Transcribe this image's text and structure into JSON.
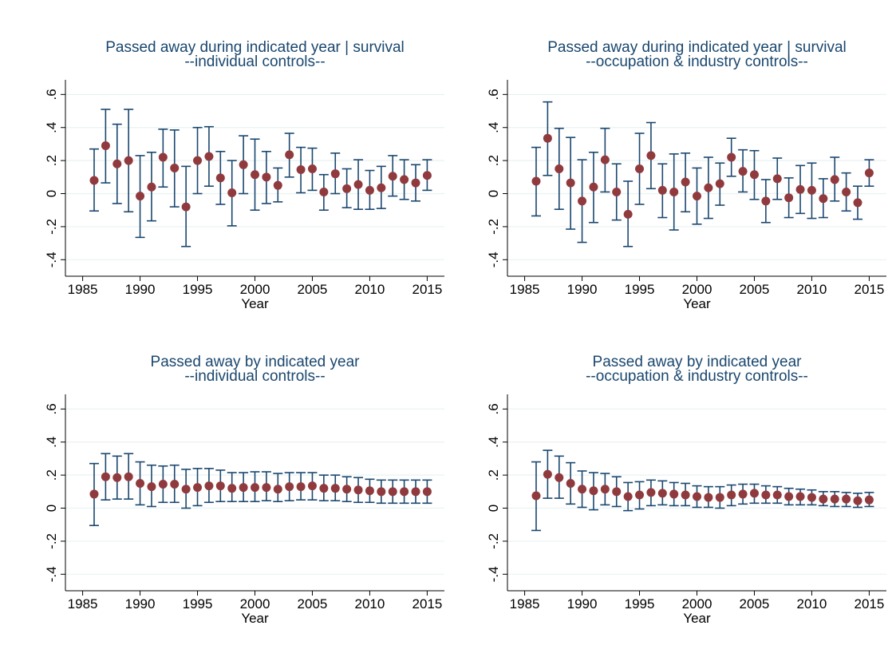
{
  "chart_data": [
    {
      "type": "scatter",
      "title": "Passed away during indicated year | survival",
      "subtitle": "--individual controls--",
      "x_label": "Year",
      "xlim": [
        1983.5,
        2016.5
      ],
      "xticks": [
        1985,
        1990,
        1995,
        2000,
        2005,
        2010,
        2015
      ],
      "ylim": [
        -0.5,
        0.65
      ],
      "yticks": [
        {
          "value": -0.4,
          "label": "-.4"
        },
        {
          "value": -0.2,
          "label": "-.2"
        },
        0,
        {
          "value": 0.2,
          "label": ".2"
        },
        {
          "value": 0.4,
          "label": ".4"
        },
        {
          "value": 0.6,
          "label": ".6"
        }
      ],
      "grid": true,
      "color": "#903a3e",
      "ci_color": "#1a476f",
      "x": [
        1986,
        1987,
        1988,
        1989,
        1990,
        1991,
        1992,
        1993,
        1994,
        1995,
        1996,
        1997,
        1998,
        1999,
        2000,
        2001,
        2002,
        2003,
        2004,
        2005,
        2006,
        2007,
        2008,
        2009,
        2010,
        2011,
        2012,
        2013,
        2014,
        2015
      ],
      "values": [
        0.08,
        0.29,
        0.18,
        0.2,
        -0.015,
        0.04,
        0.22,
        0.155,
        -0.08,
        0.2,
        0.225,
        0.095,
        0.005,
        0.175,
        0.115,
        0.1,
        0.05,
        0.235,
        0.145,
        0.15,
        0.01,
        0.12,
        0.03,
        0.055,
        0.02,
        0.035,
        0.105,
        0.085,
        0.065,
        0.11
      ],
      "ci_low": [
        -0.105,
        0.065,
        -0.06,
        -0.11,
        -0.265,
        -0.165,
        0.04,
        -0.08,
        -0.32,
        0.0,
        0.045,
        -0.065,
        -0.195,
        0.0,
        -0.1,
        -0.06,
        -0.05,
        0.1,
        0.005,
        0.02,
        -0.1,
        0.0,
        -0.085,
        -0.095,
        -0.095,
        -0.09,
        -0.015,
        -0.035,
        -0.045,
        0.02
      ],
      "ci_high": [
        0.27,
        0.51,
        0.42,
        0.51,
        0.23,
        0.25,
        0.39,
        0.385,
        0.165,
        0.4,
        0.405,
        0.255,
        0.2,
        0.35,
        0.33,
        0.255,
        0.155,
        0.365,
        0.28,
        0.275,
        0.115,
        0.245,
        0.15,
        0.205,
        0.14,
        0.165,
        0.23,
        0.205,
        0.175,
        0.205
      ]
    },
    {
      "type": "scatter",
      "title": "Passed away during indicated year | survival",
      "subtitle": "--occupation & industry controls--",
      "x_label": "Year",
      "xlim": [
        1983.5,
        2016.5
      ],
      "xticks": [
        1985,
        1990,
        1995,
        2000,
        2005,
        2010,
        2015
      ],
      "ylim": [
        -0.5,
        0.65
      ],
      "yticks": [
        {
          "value": -0.4,
          "label": "-.4"
        },
        {
          "value": -0.2,
          "label": "-.2"
        },
        0,
        {
          "value": 0.2,
          "label": ".2"
        },
        {
          "value": 0.4,
          "label": ".4"
        },
        {
          "value": 0.6,
          "label": ".6"
        }
      ],
      "grid": true,
      "color": "#903a3e",
      "ci_color": "#1a476f",
      "x": [
        1986,
        1987,
        1988,
        1989,
        1990,
        1991,
        1992,
        1993,
        1994,
        1995,
        1996,
        1997,
        1998,
        1999,
        2000,
        2001,
        2002,
        2003,
        2004,
        2005,
        2006,
        2007,
        2008,
        2009,
        2010,
        2011,
        2012,
        2013,
        2014,
        2015
      ],
      "values": [
        0.075,
        0.335,
        0.15,
        0.065,
        -0.045,
        0.04,
        0.205,
        0.01,
        -0.125,
        0.15,
        0.23,
        0.02,
        0.01,
        0.07,
        -0.015,
        0.035,
        0.06,
        0.22,
        0.135,
        0.115,
        -0.045,
        0.09,
        -0.025,
        0.025,
        0.02,
        -0.03,
        0.085,
        0.01,
        -0.055,
        0.125
      ],
      "ci_low": [
        -0.135,
        0.11,
        -0.095,
        -0.215,
        -0.295,
        -0.175,
        0.01,
        -0.16,
        -0.32,
        -0.065,
        0.03,
        -0.145,
        -0.22,
        -0.11,
        -0.185,
        -0.15,
        -0.07,
        0.105,
        0.01,
        -0.035,
        -0.175,
        -0.035,
        -0.145,
        -0.12,
        -0.15,
        -0.145,
        -0.045,
        -0.105,
        -0.155,
        0.045
      ],
      "ci_high": [
        0.28,
        0.555,
        0.395,
        0.34,
        0.205,
        0.25,
        0.395,
        0.18,
        0.075,
        0.365,
        0.43,
        0.18,
        0.24,
        0.245,
        0.155,
        0.22,
        0.185,
        0.335,
        0.265,
        0.26,
        0.085,
        0.215,
        0.095,
        0.17,
        0.185,
        0.09,
        0.22,
        0.125,
        0.045,
        0.205
      ]
    },
    {
      "type": "scatter",
      "title": "Passed away by indicated year",
      "subtitle": "--individual controls--",
      "x_label": "Year",
      "xlim": [
        1983.5,
        2016.5
      ],
      "xticks": [
        1985,
        1990,
        1995,
        2000,
        2005,
        2010,
        2015
      ],
      "ylim": [
        -0.5,
        0.65
      ],
      "yticks": [
        {
          "value": -0.4,
          "label": "-.4"
        },
        {
          "value": -0.2,
          "label": "-.2"
        },
        0,
        {
          "value": 0.2,
          "label": ".2"
        },
        {
          "value": 0.4,
          "label": ".4"
        },
        {
          "value": 0.6,
          "label": ".6"
        }
      ],
      "grid": true,
      "color": "#903a3e",
      "ci_color": "#1a476f",
      "x": [
        1986,
        1987,
        1988,
        1989,
        1990,
        1991,
        1992,
        1993,
        1994,
        1995,
        1996,
        1997,
        1998,
        1999,
        2000,
        2001,
        2002,
        2003,
        2004,
        2005,
        2006,
        2007,
        2008,
        2009,
        2010,
        2011,
        2012,
        2013,
        2014,
        2015
      ],
      "values": [
        0.085,
        0.19,
        0.185,
        0.19,
        0.15,
        0.13,
        0.145,
        0.145,
        0.115,
        0.125,
        0.135,
        0.135,
        0.12,
        0.125,
        0.125,
        0.125,
        0.115,
        0.13,
        0.13,
        0.135,
        0.12,
        0.12,
        0.115,
        0.11,
        0.105,
        0.1,
        0.1,
        0.1,
        0.1,
        0.1
      ],
      "ci_low": [
        -0.105,
        0.05,
        0.055,
        0.055,
        0.02,
        0.01,
        0.035,
        0.035,
        0.0,
        0.015,
        0.035,
        0.04,
        0.04,
        0.04,
        0.04,
        0.045,
        0.04,
        0.045,
        0.05,
        0.05,
        0.045,
        0.045,
        0.04,
        0.035,
        0.035,
        0.03,
        0.03,
        0.03,
        0.03,
        0.03
      ],
      "ci_high": [
        0.27,
        0.33,
        0.315,
        0.33,
        0.28,
        0.26,
        0.255,
        0.26,
        0.235,
        0.24,
        0.24,
        0.23,
        0.215,
        0.215,
        0.22,
        0.22,
        0.21,
        0.215,
        0.215,
        0.215,
        0.2,
        0.2,
        0.19,
        0.185,
        0.175,
        0.17,
        0.17,
        0.17,
        0.17,
        0.17
      ]
    },
    {
      "type": "scatter",
      "title": "Passed away by indicated year",
      "subtitle": "--occupation & industry controls--",
      "x_label": "Year",
      "xlim": [
        1983.5,
        2016.5
      ],
      "xticks": [
        1985,
        1990,
        1995,
        2000,
        2005,
        2010,
        2015
      ],
      "ylim": [
        -0.5,
        0.65
      ],
      "yticks": [
        {
          "value": -0.4,
          "label": "-.4"
        },
        {
          "value": -0.2,
          "label": "-.2"
        },
        0,
        {
          "value": 0.2,
          "label": ".2"
        },
        {
          "value": 0.4,
          "label": ".4"
        },
        {
          "value": 0.6,
          "label": ".6"
        }
      ],
      "grid": true,
      "color": "#903a3e",
      "ci_color": "#1a476f",
      "x": [
        1986,
        1987,
        1988,
        1989,
        1990,
        1991,
        1992,
        1993,
        1994,
        1995,
        1996,
        1997,
        1998,
        1999,
        2000,
        2001,
        2002,
        2003,
        2004,
        2005,
        2006,
        2007,
        2008,
        2009,
        2010,
        2011,
        2012,
        2013,
        2014,
        2015
      ],
      "values": [
        0.075,
        0.205,
        0.185,
        0.15,
        0.115,
        0.105,
        0.115,
        0.1,
        0.07,
        0.08,
        0.095,
        0.09,
        0.085,
        0.08,
        0.07,
        0.065,
        0.065,
        0.08,
        0.085,
        0.09,
        0.08,
        0.08,
        0.07,
        0.07,
        0.065,
        0.055,
        0.055,
        0.055,
        0.045,
        0.05
      ],
      "ci_low": [
        -0.135,
        0.06,
        0.06,
        0.025,
        0.005,
        -0.01,
        0.02,
        0.01,
        -0.015,
        -0.005,
        0.015,
        0.02,
        0.015,
        0.015,
        0.005,
        0.005,
        0.0,
        0.015,
        0.025,
        0.03,
        0.03,
        0.03,
        0.02,
        0.02,
        0.02,
        0.015,
        0.01,
        0.01,
        0.005,
        0.01
      ],
      "ci_high": [
        0.28,
        0.35,
        0.315,
        0.275,
        0.225,
        0.215,
        0.21,
        0.19,
        0.155,
        0.16,
        0.17,
        0.165,
        0.155,
        0.15,
        0.135,
        0.13,
        0.13,
        0.14,
        0.145,
        0.145,
        0.135,
        0.13,
        0.12,
        0.115,
        0.11,
        0.1,
        0.1,
        0.095,
        0.09,
        0.095
      ]
    }
  ]
}
